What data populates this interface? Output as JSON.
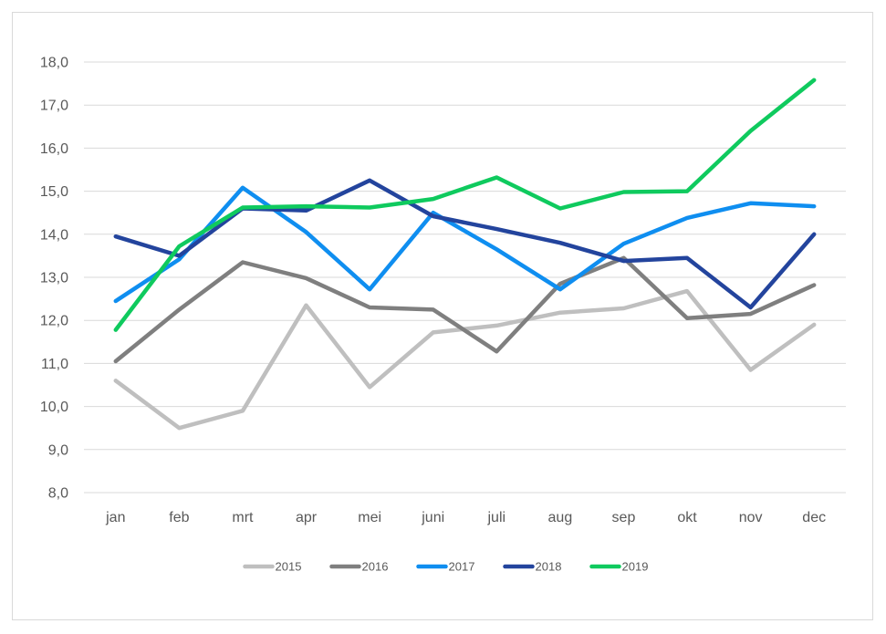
{
  "chart_data": {
    "type": "line",
    "title": "",
    "xlabel": "",
    "ylabel": "",
    "categories": [
      "jan",
      "feb",
      "mrt",
      "apr",
      "mei",
      "juni",
      "juli",
      "aug",
      "sep",
      "okt",
      "nov",
      "dec"
    ],
    "ylim": [
      8.0,
      18.0
    ],
    "yticks": [
      "8,0",
      "9,0",
      "10,0",
      "11,0",
      "12,0",
      "13,0",
      "14,0",
      "15,0",
      "16,0",
      "17,0",
      "18,0"
    ],
    "grid": true,
    "legend_position": "bottom",
    "series": [
      {
        "name": "2015",
        "color": "#bfbfbf",
        "values": [
          10.6,
          9.5,
          9.9,
          12.35,
          10.45,
          11.72,
          11.88,
          12.18,
          12.28,
          12.68,
          10.85,
          11.9
        ]
      },
      {
        "name": "2016",
        "color": "#7f7f7f",
        "values": [
          11.05,
          12.25,
          13.35,
          12.98,
          12.3,
          12.25,
          11.28,
          12.85,
          13.45,
          12.05,
          12.15,
          12.82
        ]
      },
      {
        "name": "2017",
        "color": "#0f8ef0",
        "values": [
          12.45,
          13.42,
          15.08,
          14.05,
          12.72,
          14.5,
          13.65,
          12.72,
          13.78,
          14.38,
          14.72,
          14.65
        ]
      },
      {
        "name": "2018",
        "color": "#23449d",
        "values": [
          13.95,
          13.5,
          14.6,
          14.55,
          15.25,
          14.42,
          14.12,
          13.8,
          13.38,
          13.45,
          12.3,
          14.0
        ]
      },
      {
        "name": "2019",
        "color": "#0fca5e",
        "values": [
          11.78,
          13.72,
          14.62,
          14.65,
          14.62,
          14.82,
          15.32,
          14.6,
          14.98,
          15.0,
          16.4,
          17.58
        ]
      }
    ]
  }
}
